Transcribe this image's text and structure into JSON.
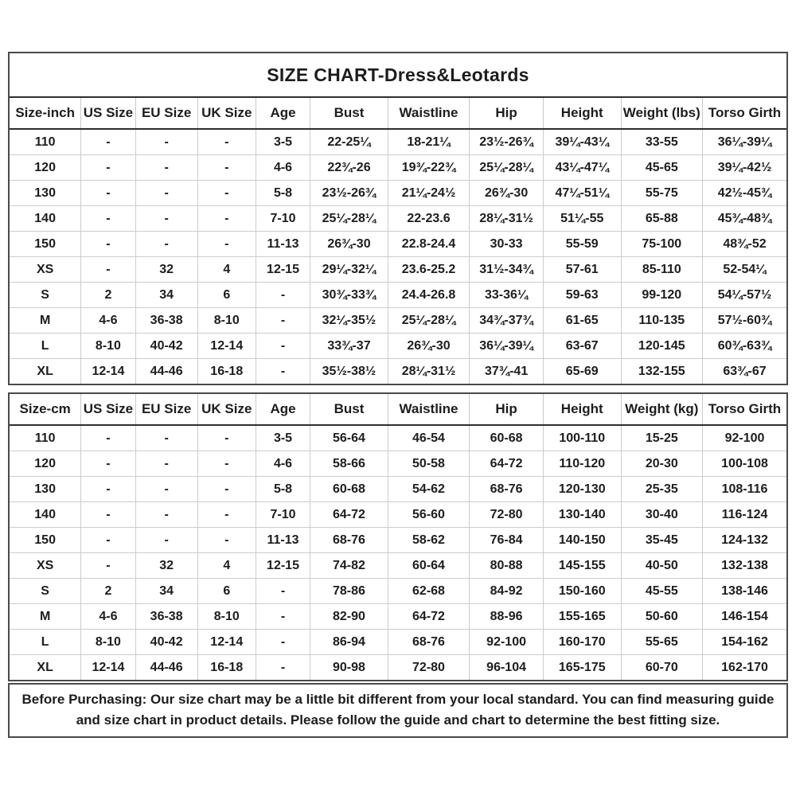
{
  "title": "SIZE CHART-Dress&Leotards",
  "tables": [
    {
      "name": "inch",
      "headers": [
        "Size-inch",
        "US Size",
        "EU Size",
        "UK Size",
        "Age",
        "Bust",
        "Waistline",
        "Hip",
        "Height",
        "Weight (lbs)",
        "Torso Girth"
      ],
      "rows": [
        [
          "110",
          "-",
          "-",
          "-",
          "3-5",
          "22-25¼",
          "18-21¼",
          "23½-26¾",
          "39¼-43¼",
          "33-55",
          "36¼-39¼"
        ],
        [
          "120",
          "-",
          "-",
          "-",
          "4-6",
          "22¾-26",
          "19¾-22¾",
          "25¼-28¼",
          "43¼-47¼",
          "45-65",
          "39¼-42½"
        ],
        [
          "130",
          "-",
          "-",
          "-",
          "5-8",
          "23½-26¾",
          "21¼-24½",
          "26¾-30",
          "47¼-51¼",
          "55-75",
          "42½-45¾"
        ],
        [
          "140",
          "-",
          "-",
          "-",
          "7-10",
          "25¼-28¼",
          "22-23.6",
          "28¼-31½",
          "51¼-55",
          "65-88",
          "45¾-48¾"
        ],
        [
          "150",
          "-",
          "-",
          "-",
          "11-13",
          "26¾-30",
          "22.8-24.4",
          "30-33",
          "55-59",
          "75-100",
          "48¾-52"
        ],
        [
          "XS",
          "-",
          "32",
          "4",
          "12-15",
          "29¼-32¼",
          "23.6-25.2",
          "31½-34¾",
          "57-61",
          "85-110",
          "52-54¼"
        ],
        [
          "S",
          "2",
          "34",
          "6",
          "-",
          "30¾-33¾",
          "24.4-26.8",
          "33-36¼",
          "59-63",
          "99-120",
          "54¼-57½"
        ],
        [
          "M",
          "4-6",
          "36-38",
          "8-10",
          "-",
          "32¼-35½",
          "25¼-28¼",
          "34¾-37¾",
          "61-65",
          "110-135",
          "57½-60¾"
        ],
        [
          "L",
          "8-10",
          "40-42",
          "12-14",
          "-",
          "33¾-37",
          "26¾-30",
          "36¼-39¼",
          "63-67",
          "120-145",
          "60¾-63¾"
        ],
        [
          "XL",
          "12-14",
          "44-46",
          "16-18",
          "-",
          "35½-38½",
          "28¼-31½",
          "37¾-41",
          "65-69",
          "132-155",
          "63¾-67"
        ]
      ]
    },
    {
      "name": "cm",
      "headers": [
        "Size-cm",
        "US Size",
        "EU Size",
        "UK Size",
        "Age",
        "Bust",
        "Waistline",
        "Hip",
        "Height",
        "Weight (kg)",
        "Torso Girth"
      ],
      "rows": [
        [
          "110",
          "-",
          "-",
          "-",
          "3-5",
          "56-64",
          "46-54",
          "60-68",
          "100-110",
          "15-25",
          "92-100"
        ],
        [
          "120",
          "-",
          "-",
          "-",
          "4-6",
          "58-66",
          "50-58",
          "64-72",
          "110-120",
          "20-30",
          "100-108"
        ],
        [
          "130",
          "-",
          "-",
          "-",
          "5-8",
          "60-68",
          "54-62",
          "68-76",
          "120-130",
          "25-35",
          "108-116"
        ],
        [
          "140",
          "-",
          "-",
          "-",
          "7-10",
          "64-72",
          "56-60",
          "72-80",
          "130-140",
          "30-40",
          "116-124"
        ],
        [
          "150",
          "-",
          "-",
          "-",
          "11-13",
          "68-76",
          "58-62",
          "76-84",
          "140-150",
          "35-45",
          "124-132"
        ],
        [
          "XS",
          "-",
          "32",
          "4",
          "12-15",
          "74-82",
          "60-64",
          "80-88",
          "145-155",
          "40-50",
          "132-138"
        ],
        [
          "S",
          "2",
          "34",
          "6",
          "-",
          "78-86",
          "62-68",
          "84-92",
          "150-160",
          "45-55",
          "138-146"
        ],
        [
          "M",
          "4-6",
          "36-38",
          "8-10",
          "-",
          "82-90",
          "64-72",
          "88-96",
          "155-165",
          "50-60",
          "146-154"
        ],
        [
          "L",
          "8-10",
          "40-42",
          "12-14",
          "-",
          "86-94",
          "68-76",
          "92-100",
          "160-170",
          "55-65",
          "154-162"
        ],
        [
          "XL",
          "12-14",
          "44-46",
          "16-18",
          "-",
          "90-98",
          "72-80",
          "96-104",
          "165-175",
          "60-70",
          "162-170"
        ]
      ]
    }
  ],
  "footer": {
    "note": "Before Purchasing: Our size chart may be a little bit different from your local standard. You can find measuring guide and size chart in product details. Please follow the guide and chart to determine the best fitting size."
  },
  "colors": {
    "text": "#1d1d1d",
    "border_dark": "#2e2e2e",
    "border_light": "#cccccc"
  }
}
